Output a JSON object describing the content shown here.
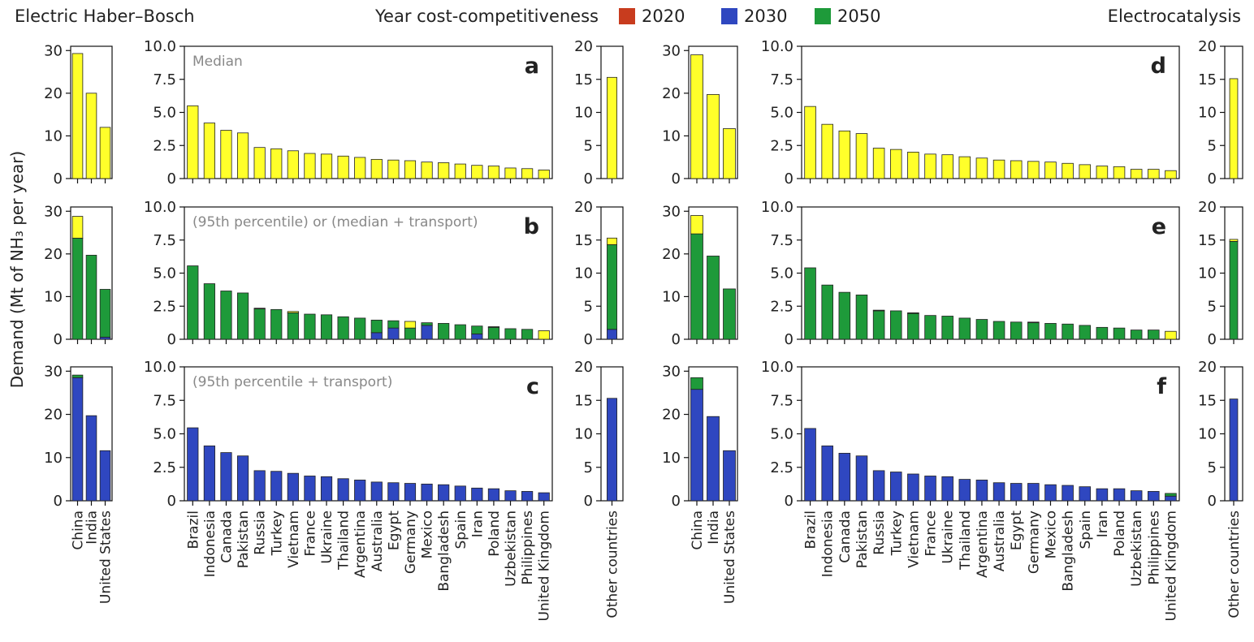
{
  "header": {
    "left": "Electric Haber–Bosch",
    "right": "Electrocatalysis"
  },
  "legend": {
    "title": "Year cost-competitiveness",
    "items": [
      {
        "label": "2020",
        "color": "#c83c1e"
      },
      {
        "label": "2030",
        "color": "#2f47c0"
      },
      {
        "label": "2050",
        "color": "#1e9a3a"
      }
    ]
  },
  "y_label": "Demand (Mt of NH₃ per year)",
  "chart_data": [
    {
      "type": "bar",
      "stacked": true,
      "ylim": [
        0,
        31
      ],
      "yticks": [
        0,
        10,
        20,
        30
      ],
      "series": [
        {
          "color": "#ffff2a",
          "values": [
            29.3,
            20,
            12
          ]
        }
      ]
    },
    {
      "type": "bar",
      "stacked": true,
      "panel": "a",
      "annotation": "Median",
      "ylim": [
        0,
        10
      ],
      "yticks": [
        0,
        2.5,
        {
          "value": 5,
          "label": "5.0"
        },
        7.5,
        {
          "value": 10,
          "label": "10.0"
        }
      ],
      "series": [
        {
          "color": "#ffff2a",
          "values": [
            5.5,
            4.2,
            3.65,
            3.45,
            2.35,
            2.25,
            2.1,
            1.9,
            1.85,
            1.7,
            1.6,
            1.45,
            1.4,
            1.35,
            1.25,
            1.2,
            1.1,
            1.0,
            0.95,
            0.8,
            0.75,
            0.65
          ]
        }
      ]
    },
    {
      "type": "bar",
      "stacked": true,
      "ylim": [
        0,
        20
      ],
      "yticks": [
        0,
        5,
        10,
        15,
        20
      ],
      "series": [
        {
          "color": "#ffff2a",
          "values": [
            15.3
          ]
        }
      ]
    },
    {
      "type": "bar",
      "stacked": true,
      "ylim": [
        0,
        31
      ],
      "yticks": [
        0,
        10,
        20,
        30
      ],
      "series": [
        {
          "color": "#2f47c0",
          "values": [
            0,
            0,
            0.5
          ]
        },
        {
          "color": "#1e9a3a",
          "values": [
            23.7,
            19.7,
            11.2
          ]
        },
        {
          "color": "#ffff2a",
          "values": [
            5.1,
            0,
            0
          ]
        }
      ]
    },
    {
      "type": "bar",
      "stacked": true,
      "panel": "b",
      "annotation": "(95th percentile) or (median + transport)",
      "ylim": [
        0,
        10
      ],
      "yticks": [
        0,
        2.5,
        {
          "value": 5,
          "label": "5.0"
        },
        7.5,
        {
          "value": 10,
          "label": "10.0"
        }
      ],
      "series": [
        {
          "color": "#2f47c0",
          "values": [
            0,
            0,
            0,
            0,
            0,
            0,
            0,
            0,
            0,
            0,
            0,
            0.5,
            0.85,
            0,
            1.05,
            0,
            0,
            0.4,
            0,
            0,
            0,
            0
          ]
        },
        {
          "color": "#1e9a3a",
          "values": [
            5.55,
            4.2,
            3.65,
            3.5,
            2.3,
            2.25,
            2.0,
            1.9,
            1.85,
            1.7,
            1.6,
            0.95,
            0.55,
            0.85,
            0.2,
            1.2,
            1.1,
            0.6,
            0.9,
            0.8,
            0.75,
            0
          ]
        },
        {
          "color": "#ffff2a",
          "values": [
            0,
            0,
            0,
            0,
            0.05,
            0,
            0.1,
            0,
            0,
            0,
            0,
            0,
            0,
            0.5,
            0,
            0,
            0,
            0,
            0.05,
            0,
            0,
            0.65
          ]
        }
      ]
    },
    {
      "type": "bar",
      "stacked": true,
      "ylim": [
        0,
        20
      ],
      "yticks": [
        0,
        5,
        10,
        15,
        20
      ],
      "series": [
        {
          "color": "#2f47c0",
          "values": [
            1.5
          ]
        },
        {
          "color": "#1e9a3a",
          "values": [
            12.8
          ]
        },
        {
          "color": "#ffff2a",
          "values": [
            1.0
          ]
        }
      ]
    },
    {
      "type": "bar",
      "stacked": true,
      "categories": [
        "China",
        "India",
        "United States"
      ],
      "ylim": [
        0,
        31
      ],
      "yticks": [
        0,
        10,
        20,
        30
      ],
      "series": [
        {
          "color": "#2f47c0",
          "values": [
            28.5,
            19.7,
            11.6
          ]
        },
        {
          "color": "#1e9a3a",
          "values": [
            0.6,
            0,
            0
          ]
        }
      ]
    },
    {
      "type": "bar",
      "stacked": true,
      "panel": "c",
      "annotation": "(95th percentile + transport)",
      "categories": [
        "Brazil",
        "Indonesia",
        "Canada",
        "Pakistan",
        "Russia",
        "Turkey",
        "Vietnam",
        "France",
        "Ukraine",
        "Thailand",
        "Argentina",
        "Australia",
        "Egypt",
        "Germany",
        "Mexico",
        "Bangladesh",
        "Spain",
        "Iran",
        "Poland",
        "Uzbekistan",
        "Philippines",
        "United Kingdom"
      ],
      "ylim": [
        0,
        10
      ],
      "yticks": [
        0,
        2.5,
        {
          "value": 5,
          "label": "5.0"
        },
        7.5,
        {
          "value": 10,
          "label": "10.0"
        }
      ],
      "series": [
        {
          "color": "#2f47c0",
          "values": [
            5.45,
            4.1,
            3.6,
            3.35,
            2.25,
            2.2,
            2.05,
            1.85,
            1.8,
            1.65,
            1.55,
            1.4,
            1.35,
            1.3,
            1.25,
            1.2,
            1.1,
            0.95,
            0.9,
            0.75,
            0.7,
            0.6
          ]
        }
      ]
    },
    {
      "type": "bar",
      "stacked": true,
      "categories": [
        "Other countries"
      ],
      "ylim": [
        0,
        20
      ],
      "yticks": [
        0,
        5,
        10,
        15,
        20
      ],
      "series": [
        {
          "color": "#2f47c0",
          "values": [
            15.3
          ]
        }
      ]
    },
    {
      "type": "bar",
      "stacked": true,
      "ylim": [
        0,
        31
      ],
      "yticks": [
        0,
        10,
        20,
        30
      ],
      "series": [
        {
          "color": "#ffff2a",
          "values": [
            29,
            19.7,
            11.7
          ]
        }
      ]
    },
    {
      "type": "bar",
      "stacked": true,
      "panel": "d",
      "ylim": [
        0,
        10
      ],
      "yticks": [
        0,
        2.5,
        {
          "value": 5,
          "label": "5.0"
        },
        7.5,
        {
          "value": 10,
          "label": "10.0"
        }
      ],
      "series": [
        {
          "color": "#ffff2a",
          "values": [
            5.45,
            4.1,
            3.6,
            3.4,
            2.3,
            2.2,
            2.0,
            1.85,
            1.8,
            1.65,
            1.55,
            1.4,
            1.35,
            1.3,
            1.25,
            1.15,
            1.05,
            0.95,
            0.9,
            0.7,
            0.7,
            0.6
          ]
        }
      ]
    },
    {
      "type": "bar",
      "stacked": true,
      "ylim": [
        0,
        20
      ],
      "yticks": [
        0,
        5,
        10,
        15,
        20
      ],
      "series": [
        {
          "color": "#ffff2a",
          "values": [
            15.1
          ]
        }
      ]
    },
    {
      "type": "bar",
      "stacked": true,
      "ylim": [
        0,
        31
      ],
      "yticks": [
        0,
        10,
        20,
        30
      ],
      "series": [
        {
          "color": "#1e9a3a",
          "values": [
            24.7,
            19.5,
            11.8
          ]
        },
        {
          "color": "#ffff2a",
          "values": [
            4.3,
            0,
            0
          ]
        }
      ]
    },
    {
      "type": "bar",
      "stacked": true,
      "panel": "e",
      "ylim": [
        0,
        10
      ],
      "yticks": [
        0,
        2.5,
        {
          "value": 5,
          "label": "5.0"
        },
        7.5,
        {
          "value": 10,
          "label": "10.0"
        }
      ],
      "series": [
        {
          "color": "#1e9a3a",
          "values": [
            5.4,
            4.1,
            3.55,
            3.35,
            2.15,
            2.15,
            1.95,
            1.8,
            1.75,
            1.6,
            1.5,
            1.35,
            1.3,
            1.25,
            1.2,
            1.15,
            1.05,
            0.9,
            0.85,
            0.7,
            0.7,
            0
          ]
        },
        {
          "color": "#ffff2a",
          "values": [
            0,
            0,
            0,
            0,
            0.05,
            0,
            0.05,
            0,
            0,
            0,
            0,
            0,
            0,
            0.05,
            0,
            0,
            0,
            0,
            0,
            0,
            0,
            0.6
          ]
        }
      ]
    },
    {
      "type": "bar",
      "stacked": true,
      "ylim": [
        0,
        20
      ],
      "yticks": [
        0,
        5,
        10,
        15,
        20
      ],
      "series": [
        {
          "color": "#1e9a3a",
          "values": [
            14.8
          ]
        },
        {
          "color": "#ffff2a",
          "values": [
            0.3
          ]
        }
      ]
    },
    {
      "type": "bar",
      "stacked": true,
      "categories": [
        "China",
        "India",
        "United States"
      ],
      "ylim": [
        0,
        31
      ],
      "yticks": [
        0,
        10,
        20,
        30
      ],
      "series": [
        {
          "color": "#2f47c0",
          "values": [
            25.8,
            19.5,
            11.6
          ]
        },
        {
          "color": "#1e9a3a",
          "values": [
            2.7,
            0,
            0
          ]
        }
      ]
    },
    {
      "type": "bar",
      "stacked": true,
      "panel": "f",
      "categories": [
        "Brazil",
        "Indonesia",
        "Canada",
        "Pakistan",
        "Russia",
        "Turkey",
        "Vietnam",
        "France",
        "Ukraine",
        "Thailand",
        "Argentina",
        "Australia",
        "Egypt",
        "Germany",
        "Mexico",
        "Bangladesh",
        "Spain",
        "Iran",
        "Poland",
        "Uzbekistan",
        "Philippines",
        "United Kingdom"
      ],
      "ylim": [
        0,
        10
      ],
      "yticks": [
        0,
        2.5,
        {
          "value": 5,
          "label": "5.0"
        },
        7.5,
        {
          "value": 10,
          "label": "10.0"
        }
      ],
      "series": [
        {
          "color": "#2f47c0",
          "values": [
            5.4,
            4.1,
            3.55,
            3.35,
            2.25,
            2.15,
            2.0,
            1.85,
            1.8,
            1.6,
            1.55,
            1.35,
            1.3,
            1.3,
            1.2,
            1.15,
            1.05,
            0.9,
            0.9,
            0.75,
            0.7,
            0.35
          ]
        },
        {
          "color": "#1e9a3a",
          "values": [
            0,
            0,
            0,
            0,
            0,
            0,
            0,
            0,
            0,
            0,
            0,
            0,
            0,
            0,
            0,
            0,
            0,
            0,
            0,
            0,
            0,
            0.2
          ]
        }
      ]
    },
    {
      "type": "bar",
      "stacked": true,
      "categories": [
        "Other countries"
      ],
      "ylim": [
        0,
        20
      ],
      "yticks": [
        0,
        5,
        10,
        15,
        20
      ],
      "series": [
        {
          "color": "#2f47c0",
          "values": [
            15.2
          ]
        }
      ]
    }
  ]
}
